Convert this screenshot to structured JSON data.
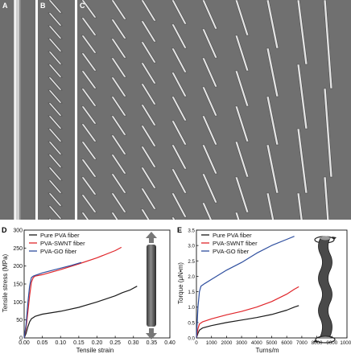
{
  "panels": {
    "a": "A",
    "b": "B",
    "c": "C",
    "d": "D",
    "e": "E"
  },
  "colors": {
    "pure_pva": "#1a1a1a",
    "pva_swnt": "#e0262b",
    "pva_go": "#2f4f9f"
  },
  "chart_data": [
    {
      "type": "line",
      "panel": "D",
      "xlabel": "Tensile strain",
      "ylabel": "Tensile stress (MPa)",
      "xlim": [
        0.0,
        0.4
      ],
      "ylim": [
        0,
        300
      ],
      "xticks": [
        "0.00",
        "0.05",
        "0.10",
        "0.15",
        "0.20",
        "0.25",
        "0.30",
        "0.35",
        "0.40"
      ],
      "yticks": [
        "0",
        "50",
        "100",
        "150",
        "200",
        "250",
        "300"
      ],
      "legend": "top-left",
      "series": [
        {
          "name": "Pure PVA fiber",
          "color": "#1a1a1a",
          "points": [
            [
              0,
              0
            ],
            [
              0.005,
              12
            ],
            [
              0.01,
              30
            ],
            [
              0.015,
              45
            ],
            [
              0.02,
              53
            ],
            [
              0.03,
              60
            ],
            [
              0.05,
              66
            ],
            [
              0.1,
              74
            ],
            [
              0.15,
              85
            ],
            [
              0.2,
              100
            ],
            [
              0.25,
              117
            ],
            [
              0.27,
              126
            ],
            [
              0.29,
              133
            ],
            [
              0.31,
              144
            ]
          ]
        },
        {
          "name": "PVA-SWNT fiber",
          "color": "#e0262b",
          "points": [
            [
              0,
              0
            ],
            [
              0.005,
              25
            ],
            [
              0.01,
              70
            ],
            [
              0.015,
              118
            ],
            [
              0.02,
              155
            ],
            [
              0.025,
              168
            ],
            [
              0.03,
              172
            ],
            [
              0.05,
              176
            ],
            [
              0.1,
              190
            ],
            [
              0.15,
              206
            ],
            [
              0.2,
              223
            ],
            [
              0.25,
              243
            ],
            [
              0.267,
              252
            ]
          ]
        },
        {
          "name": "PVA-GO fiber",
          "color": "#2f4f9f",
          "points": [
            [
              0,
              0
            ],
            [
              0.005,
              35
            ],
            [
              0.01,
              95
            ],
            [
              0.015,
              145
            ],
            [
              0.02,
              168
            ],
            [
              0.025,
              172
            ],
            [
              0.03,
              174
            ],
            [
              0.05,
              181
            ],
            [
              0.1,
              194
            ],
            [
              0.13,
              202
            ],
            [
              0.157,
              210
            ]
          ]
        }
      ]
    },
    {
      "type": "line",
      "panel": "E",
      "xlabel": "Turns/m",
      "ylabel": "Torque (μN•m)",
      "xlim": [
        0,
        10000
      ],
      "ylim": [
        0,
        3.5
      ],
      "xticks": [
        "0",
        "1000",
        "2000",
        "3000",
        "4000",
        "5000",
        "6000",
        "7000",
        "8000",
        "9000",
        "10000"
      ],
      "yticks": [
        "0.0",
        "0.5",
        "1.0",
        "1.5",
        "2.0",
        "2.5",
        "3.0",
        "3.5"
      ],
      "legend": "top-left",
      "series": [
        {
          "name": "Pure PVA fiber",
          "color": "#1a1a1a",
          "points": [
            [
              0,
              0
            ],
            [
              100,
              0.15
            ],
            [
              200,
              0.25
            ],
            [
              400,
              0.32
            ],
            [
              1000,
              0.4
            ],
            [
              2000,
              0.5
            ],
            [
              3000,
              0.58
            ],
            [
              4000,
              0.66
            ],
            [
              5000,
              0.76
            ],
            [
              6000,
              0.9
            ],
            [
              6500,
              1.0
            ],
            [
              6800,
              1.05
            ]
          ]
        },
        {
          "name": "PVA-SWNT fiber",
          "color": "#e0262b",
          "points": [
            [
              0,
              0
            ],
            [
              100,
              0.3
            ],
            [
              200,
              0.45
            ],
            [
              400,
              0.52
            ],
            [
              1000,
              0.62
            ],
            [
              2000,
              0.75
            ],
            [
              3000,
              0.86
            ],
            [
              4000,
              1.0
            ],
            [
              5000,
              1.18
            ],
            [
              6000,
              1.42
            ],
            [
              6500,
              1.58
            ],
            [
              6800,
              1.66
            ]
          ]
        },
        {
          "name": "PVA-GO fiber",
          "color": "#2f4f9f",
          "points": [
            [
              0,
              0
            ],
            [
              100,
              1.0
            ],
            [
              200,
              1.5
            ],
            [
              300,
              1.68
            ],
            [
              500,
              1.75
            ],
            [
              1000,
              1.9
            ],
            [
              2000,
              2.2
            ],
            [
              3000,
              2.45
            ],
            [
              4000,
              2.75
            ],
            [
              5000,
              3.0
            ],
            [
              6000,
              3.2
            ],
            [
              6500,
              3.3
            ]
          ]
        }
      ]
    }
  ]
}
